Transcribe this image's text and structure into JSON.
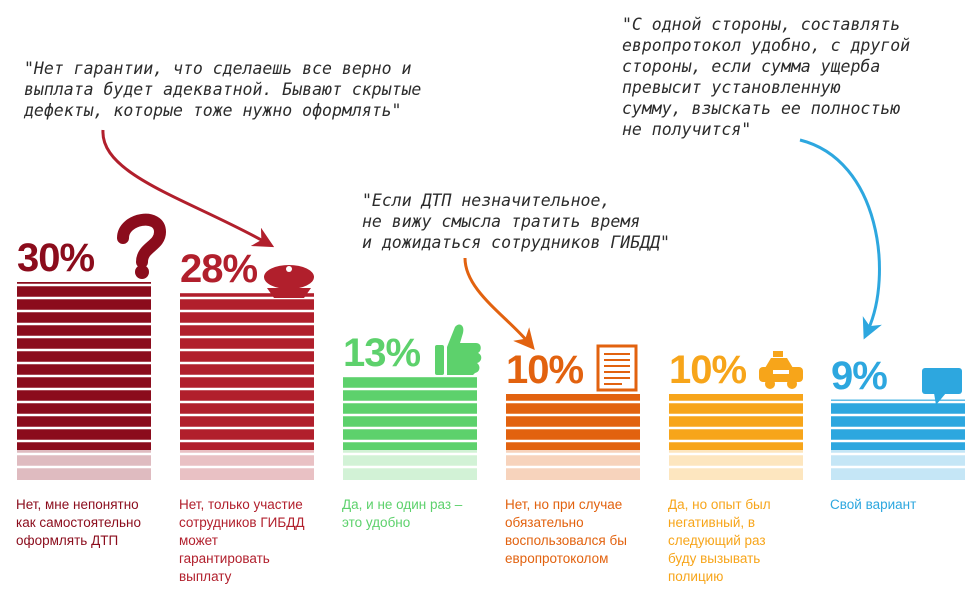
{
  "chart_data": {
    "type": "bar",
    "title": "",
    "xlabel": "",
    "ylabel": "",
    "ylim": [
      0,
      30
    ],
    "categories": [
      "Нет, мне непонятно\nкак самостоятельно\nоформлять ДТП",
      "Нет, только участие\nсотрудников ГИБДД\nможет\nгарантировать\nвыплату",
      "Да, и не один раз –\nэто удобно",
      "Нет, но при случае\nобязательно\nвоспользовался бы\nевропротоколом",
      "Да, но опыт был\nнегативный, в\nследующий раз\nбуду вызывать\nполицию",
      "Свой вариант"
    ],
    "values": [
      30,
      28,
      13,
      10,
      10,
      9
    ],
    "labels": [
      "30%",
      "28%",
      "13%",
      "10%",
      "10%",
      "9%"
    ],
    "colors": [
      "#8b0c1c",
      "#b11f2c",
      "#5dd16c",
      "#e2620f",
      "#f7a51a",
      "#2da7df"
    ],
    "icons": [
      "question-mark-icon",
      "police-cap-icon",
      "thumbs-up-icon",
      "document-icon",
      "taxi-car-icon",
      "speech-bubble-icon"
    ],
    "annotations": [
      "\"Нет гарантии, что сделаешь все верно и\nвыплата будет адекватной. Бывают скрытые\nдефекты, которые тоже нужно оформлять\"",
      "\"Если ДТП незначительное,\nне вижу смысла тратить время\nи дожидаться сотрудников ГИБДД\"",
      "\"С одной стороны, составлять\nевропротокол удобно, с другой\nстороны, если сумма ущерба\nпревысит установленную\nсумму, взыскать ее полностью\nне получится\""
    ]
  }
}
